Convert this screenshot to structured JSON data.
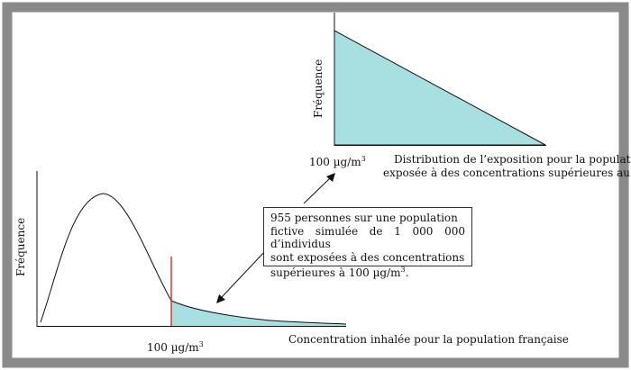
{
  "colors": {
    "frame_border": "#8a8a8a",
    "fill": "#a8dfe0",
    "threshold_line": "#e0392b",
    "ink": "#111111"
  },
  "main_chart": {
    "y_label": "Fréquence",
    "x_label": "Concentration inhalée pour la population française",
    "threshold_label": "100 µg/m",
    "threshold_label_sup": "3"
  },
  "inset_chart": {
    "y_label": "Fréquence",
    "x_tick_label": "100 µg/m",
    "x_tick_label_sup": "3",
    "caption_line1": "Distribution de l’exposition pour la population",
    "caption_line2": "exposée à des concentrations supérieures au seuil"
  },
  "annotation": {
    "line1": "955 personnes sur une population",
    "line2": "fictive simulée de 1 000 000 d’individus",
    "line3": "sont exposées à des concentrations",
    "line4": "supérieures à 100 µg/m",
    "line4_sup": "3",
    "line4_end": "."
  },
  "icons": [
    "arrow-to-tail-icon",
    "arrow-to-inset-icon"
  ]
}
